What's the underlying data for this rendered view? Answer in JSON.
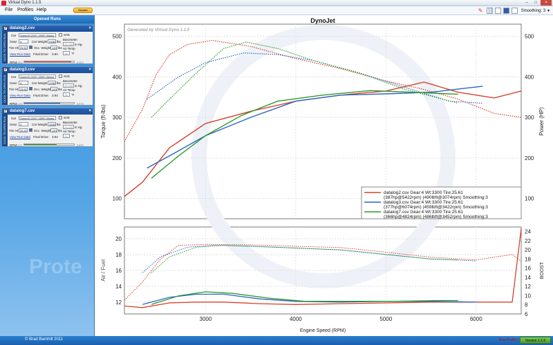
{
  "window": {
    "title": "Virtual Dyno 1.1.5"
  },
  "menu": {
    "file": "File",
    "profiles": "Profiles",
    "help": "Help",
    "donate": "Donate"
  },
  "toolbar": {
    "smoothing": "Smoothing: 3"
  },
  "sidebar": {
    "header": "Opened Runs",
    "watermark": "Prote",
    "vtab": "CLICK TO OPEN RUN",
    "runs": [
      {
        "file": "datalog2.csv",
        "car": "Speed3  (2007-2009) (Manu",
        "gear": "4",
        "car_weight": "3180",
        "tire_ht": "25.61",
        "occ_weight": "120",
        "final_drive": "3.94",
        "barometer": "29.220",
        "air_temp": "75",
        "rpm_lo": "1961",
        "rpm_hi": "6484",
        "rpm_fill": 0.95,
        "color": "#d9402a"
      },
      {
        "file": "datalog3.csv",
        "car": "Speed3  (2007-2009) (Manu",
        "gear": "4",
        "car_weight": "3180",
        "tire_ht": "25.61",
        "occ_weight": "120",
        "final_drive": "3.94",
        "barometer": "29.220",
        "air_temp": "75",
        "rpm_lo": "2100",
        "rpm_hi": "6075",
        "rpm_fill": 0.72,
        "color": "#2a64c8"
      },
      {
        "file": "datalog7.csv",
        "car": "Speed3  (2007-2009) (Manu",
        "gear": "4",
        "car_weight": "3180",
        "tire_ht": "25.61",
        "occ_weight": "120",
        "final_drive": "3.94",
        "barometer": "29.220",
        "air_temp": "75",
        "rpm_lo": "2161",
        "rpm_hi": "5805",
        "rpm_fill": 0.65,
        "color": "#2b9a2b"
      }
    ],
    "labels": {
      "car": "Car",
      "gear": "Gear:",
      "car_weight": "Car Weight",
      "lbs": "lbs",
      "tire_ht": "Tire Ht:",
      "occ_weight": "Occ. Weight",
      "final_drive": "Final Drive:",
      "view_run": "View Run Data",
      "rpm": "RPM",
      "sae": "SAE",
      "barometer": "Barometer",
      "inhg": "in Hg",
      "air_temp": "Air Temp",
      "deg_f": "°F"
    }
  },
  "status": {
    "copyright": "© Brad Barnhill 2011",
    "new_profile": "New Profile I",
    "version": "Version 1.1.5"
  },
  "chart_data": [
    {
      "type": "line",
      "title": "DynoJet",
      "subtitle": "Generated by Virtual Dyno 1.1.5",
      "ylabel": "Torque (ft-lbs)",
      "y2label": "Power (HP)",
      "xlim": [
        2100,
        6500
      ],
      "ylim": [
        50,
        530
      ],
      "y2lim": [
        50,
        530
      ],
      "y_ticks": [
        100,
        200,
        300,
        400,
        500
      ],
      "y2_ticks": [
        100,
        200,
        300,
        400,
        500
      ],
      "grid": true,
      "legend": "bottom-right",
      "legend_entries": [
        {
          "line1": "datalog2.csv Gear:4 Wt:3300 Tire:25.61",
          "line2": "(387hp@5422rpm) (490lbft@3074rpm) Smoothing:3",
          "color": "#d9402a"
        },
        {
          "line1": "datalog3.csv Gear:4 Wt:3300 Tire:25.61",
          "line2": "(377hp@6074rpm) (459lbft@3422rpm) Smoothing:3",
          "color": "#2a64c8"
        },
        {
          "line1": "datalog7.csv Gear:4 Wt:3300 Tire:25.61",
          "line2": "(366hp@4824rpm) (486lbft@3452rpm) Smoothing:3",
          "color": "#2b9a2b"
        }
      ],
      "series": [
        {
          "color": "#d9402a",
          "kind": "hp",
          "x": [
            2100,
            2300,
            2600,
            3000,
            3500,
            4000,
            4500,
            5000,
            5422,
            5800,
            6200,
            6500
          ],
          "y": [
            105,
            140,
            225,
            285,
            315,
            340,
            355,
            365,
            387,
            362,
            348,
            365
          ]
        },
        {
          "color": "#d9402a",
          "kind": "torque",
          "x": [
            2100,
            2300,
            2450,
            2600,
            2800,
            3074,
            3500,
            4000,
            4500,
            5000,
            5400,
            5800,
            6200,
            6500
          ],
          "y": [
            240,
            320,
            405,
            455,
            480,
            490,
            475,
            445,
            420,
            390,
            370,
            345,
            310,
            300
          ]
        },
        {
          "color": "#2a64c8",
          "kind": "hp",
          "x": [
            2350,
            2600,
            3000,
            3500,
            4000,
            4500,
            5000,
            5500,
            6074
          ],
          "y": [
            175,
            205,
            255,
            300,
            340,
            355,
            358,
            362,
            377
          ]
        },
        {
          "color": "#2a64c8",
          "kind": "torque",
          "x": [
            2350,
            2700,
            3000,
            3422,
            3800,
            4200,
            4700,
            5200,
            5700,
            6074
          ],
          "y": [
            345,
            400,
            435,
            459,
            455,
            440,
            410,
            375,
            340,
            335
          ]
        },
        {
          "color": "#2b9a2b",
          "kind": "hp",
          "x": [
            2400,
            2700,
            3000,
            3400,
            3800,
            4300,
            4824,
            5300,
            5800
          ],
          "y": [
            150,
            205,
            255,
            305,
            340,
            355,
            366,
            362,
            357
          ]
        },
        {
          "color": "#2b9a2b",
          "kind": "torque",
          "x": [
            2400,
            2600,
            2900,
            3200,
            3452,
            3800,
            4200,
            4700,
            5200,
            5800
          ],
          "y": [
            300,
            345,
            410,
            470,
            486,
            470,
            440,
            410,
            370,
            335
          ]
        }
      ]
    },
    {
      "type": "line",
      "ylabel": "Air / Fuel",
      "y2label": "BOOST",
      "xlabel": "Engine Speed (RPM)",
      "xlim": [
        2100,
        6500
      ],
      "x_ticks": [
        3000,
        4000,
        5000,
        6000
      ],
      "ylim": [
        10.5,
        21.5
      ],
      "y_ticks": [
        12,
        14,
        16,
        18,
        20
      ],
      "y2lim": [
        6,
        25
      ],
      "y2_ticks": [
        6,
        8,
        10,
        12,
        14,
        16,
        18,
        20,
        22,
        24
      ],
      "grid": true,
      "series": [
        {
          "color": "#d9402a",
          "kind": "afr",
          "x": [
            2100,
            2300,
            2600,
            2900,
            3200,
            3600,
            4000,
            4500,
            5000,
            5500,
            6000,
            6400,
            6500
          ],
          "y": [
            11.5,
            11.3,
            11.9,
            12.0,
            12.0,
            11.8,
            11.7,
            11.8,
            11.9,
            12.0,
            12.0,
            12.0,
            21.3
          ]
        },
        {
          "color": "#2a64c8",
          "kind": "afr",
          "x": [
            2300,
            2600,
            2900,
            3200,
            3600,
            4000,
            4500,
            5000,
            5500,
            6000
          ],
          "y": [
            11.7,
            12.6,
            13.0,
            13.0,
            12.4,
            12.1,
            12.0,
            12.1,
            12.1,
            12.0
          ]
        },
        {
          "color": "#2b9a2b",
          "kind": "afr",
          "x": [
            2400,
            2700,
            3000,
            3300,
            3700,
            4100,
            4600,
            5100,
            5600,
            5800
          ],
          "y": [
            11.7,
            12.8,
            13.3,
            13.1,
            12.5,
            12.1,
            12.1,
            12.1,
            12.2,
            12.2
          ]
        },
        {
          "color": "#d9402a",
          "kind": "boost",
          "x": [
            2100,
            2300,
            2500,
            2700,
            3000,
            3500,
            4000,
            4500,
            5000,
            5500,
            6000,
            6400,
            6500
          ],
          "y": [
            9,
            13,
            18,
            21,
            21.2,
            21.1,
            20.8,
            20.5,
            19.5,
            18.4,
            17.8,
            19,
            17.5
          ]
        },
        {
          "color": "#2a64c8",
          "kind": "boost",
          "x": [
            2300,
            2500,
            2800,
            3100,
            3500,
            4000,
            4500,
            5000,
            5500,
            6000
          ],
          "y": [
            15,
            18.5,
            20.6,
            21,
            20.8,
            20.4,
            20,
            19,
            18,
            17.6
          ]
        },
        {
          "color": "#2b9a2b",
          "kind": "boost",
          "x": [
            2400,
            2600,
            2900,
            3200,
            3500,
            4000,
            4500,
            5000,
            5500,
            5800
          ],
          "y": [
            15,
            18.5,
            20.6,
            21,
            20.8,
            20.4,
            20,
            19,
            18,
            17.8
          ]
        }
      ]
    }
  ]
}
